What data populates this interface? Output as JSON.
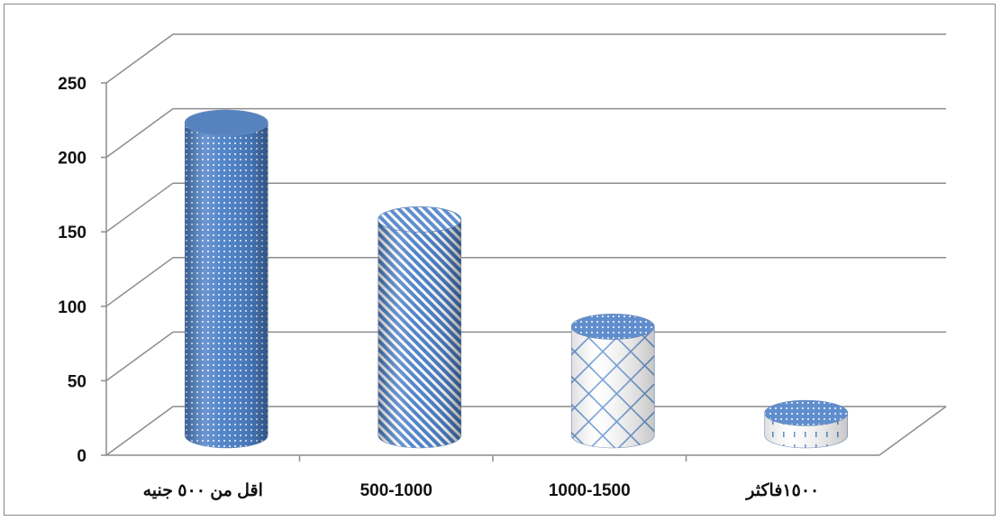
{
  "chart_data": {
    "type": "bar",
    "bar_shape": "3d-cylinder",
    "categories": [
      "اقل من ٥٠٠ جنيه",
      "500-1000",
      "1000-1500",
      "١٥٠٠فاكثر"
    ],
    "values": [
      210,
      145,
      73,
      15
    ],
    "ylim": [
      0,
      250
    ],
    "yticks": [
      0,
      50,
      100,
      150,
      200,
      250
    ],
    "grid": true,
    "legend": "none",
    "title": "",
    "xlabel": "",
    "ylabel": "",
    "colors": {
      "bar_fill": "#4a7fc7",
      "bar_dark": "#2f5e9e",
      "bar_light": "#ffffff",
      "grid": "#8c8c8c",
      "pattern_accent": "#5b8fd0"
    },
    "patterns": [
      "dots",
      "diagonal-stripes",
      "weave",
      "dashes"
    ]
  }
}
